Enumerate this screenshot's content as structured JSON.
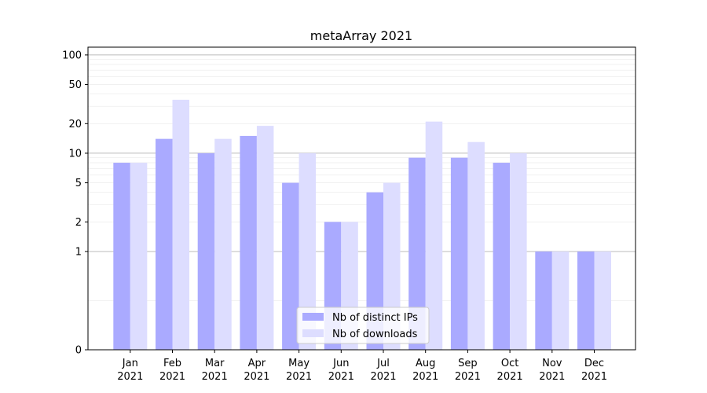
{
  "chart_data": {
    "type": "bar",
    "title": "metaArray 2021",
    "xlabel": "",
    "ylabel": "",
    "scale": "symlog",
    "ylim": [
      0,
      120
    ],
    "yticks": [
      {
        "value": 0,
        "label": "0"
      },
      {
        "value": 1,
        "label": "1"
      },
      {
        "value": 2,
        "label": "2"
      },
      {
        "value": 5,
        "label": "5"
      },
      {
        "value": 10,
        "label": "10"
      },
      {
        "value": 20,
        "label": "20"
      },
      {
        "value": 50,
        "label": "50"
      },
      {
        "value": 100,
        "label": "100"
      }
    ],
    "categories": [
      {
        "month": "Jan",
        "year": "2021"
      },
      {
        "month": "Feb",
        "year": "2021"
      },
      {
        "month": "Mar",
        "year": "2021"
      },
      {
        "month": "Apr",
        "year": "2021"
      },
      {
        "month": "May",
        "year": "2021"
      },
      {
        "month": "Jun",
        "year": "2021"
      },
      {
        "month": "Jul",
        "year": "2021"
      },
      {
        "month": "Aug",
        "year": "2021"
      },
      {
        "month": "Sep",
        "year": "2021"
      },
      {
        "month": "Oct",
        "year": "2021"
      },
      {
        "month": "Nov",
        "year": "2021"
      },
      {
        "month": "Dec",
        "year": "2021"
      }
    ],
    "series": [
      {
        "name": "Nb of distinct IPs",
        "color": "#aaaaff",
        "values": [
          8,
          14,
          10,
          15,
          5,
          2,
          4,
          9,
          9,
          8,
          1,
          1
        ]
      },
      {
        "name": "Nb of downloads",
        "color": "#ddddff",
        "values": [
          8,
          35,
          14,
          19,
          10,
          2,
          5,
          21,
          13,
          10,
          1,
          1
        ]
      }
    ],
    "grid": true,
    "legend": "lower-center"
  }
}
